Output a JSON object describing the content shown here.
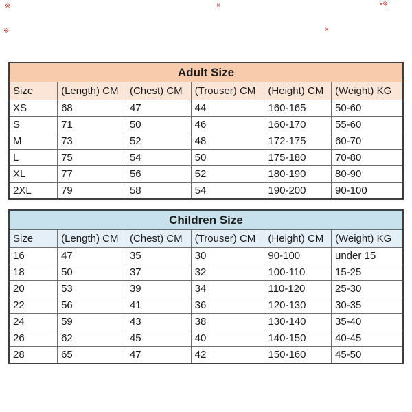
{
  "watermarks": [
    {
      "glyph": "※"
    },
    {
      "glyph": "×"
    },
    {
      "glyph": "×※"
    },
    {
      "glyph": "※"
    },
    {
      "glyph": "×"
    }
  ],
  "tables": [
    {
      "title": "Adult Size",
      "theme": {
        "title_bg": "#f8cbad",
        "header_bg": "#fbe5d6"
      },
      "columns": [
        "Size",
        "(Length) CM",
        "(Chest) CM",
        "(Trouser) CM",
        "(Height) CM",
        "(Weight) KG"
      ],
      "rows": [
        [
          "XS",
          "68",
          "47",
          "44",
          "160-165",
          "50-60"
        ],
        [
          "S",
          "71",
          "50",
          "46",
          "160-170",
          "55-60"
        ],
        [
          "M",
          "73",
          "52",
          "48",
          "172-175",
          "60-70"
        ],
        [
          "L",
          "75",
          "54",
          "50",
          "175-180",
          "70-80"
        ],
        [
          "XL",
          "77",
          "56",
          "52",
          "180-190",
          "80-90"
        ],
        [
          "2XL",
          "79",
          "58",
          "54",
          "190-200",
          "90-100"
        ]
      ]
    },
    {
      "title": "Children Size",
      "theme": {
        "title_bg": "#c7e1ed",
        "header_bg": "#e4eff7"
      },
      "columns": [
        "Size",
        "(Length) CM",
        "(Chest) CM",
        "(Trouser) CM",
        "(Height) CM",
        "(Weight) KG"
      ],
      "rows": [
        [
          "16",
          "47",
          "35",
          "30",
          "90-100",
          "under 15"
        ],
        [
          "18",
          "50",
          "37",
          "32",
          "100-110",
          "15-25"
        ],
        [
          "20",
          "53",
          "39",
          "34",
          "110-120",
          "25-30"
        ],
        [
          "22",
          "56",
          "41",
          "36",
          "120-130",
          "30-35"
        ],
        [
          "24",
          "59",
          "43",
          "38",
          "130-140",
          "35-40"
        ],
        [
          "26",
          "62",
          "45",
          "40",
          "140-150",
          "40-45"
        ],
        [
          "28",
          "65",
          "47",
          "42",
          "150-160",
          "45-50"
        ]
      ]
    }
  ]
}
